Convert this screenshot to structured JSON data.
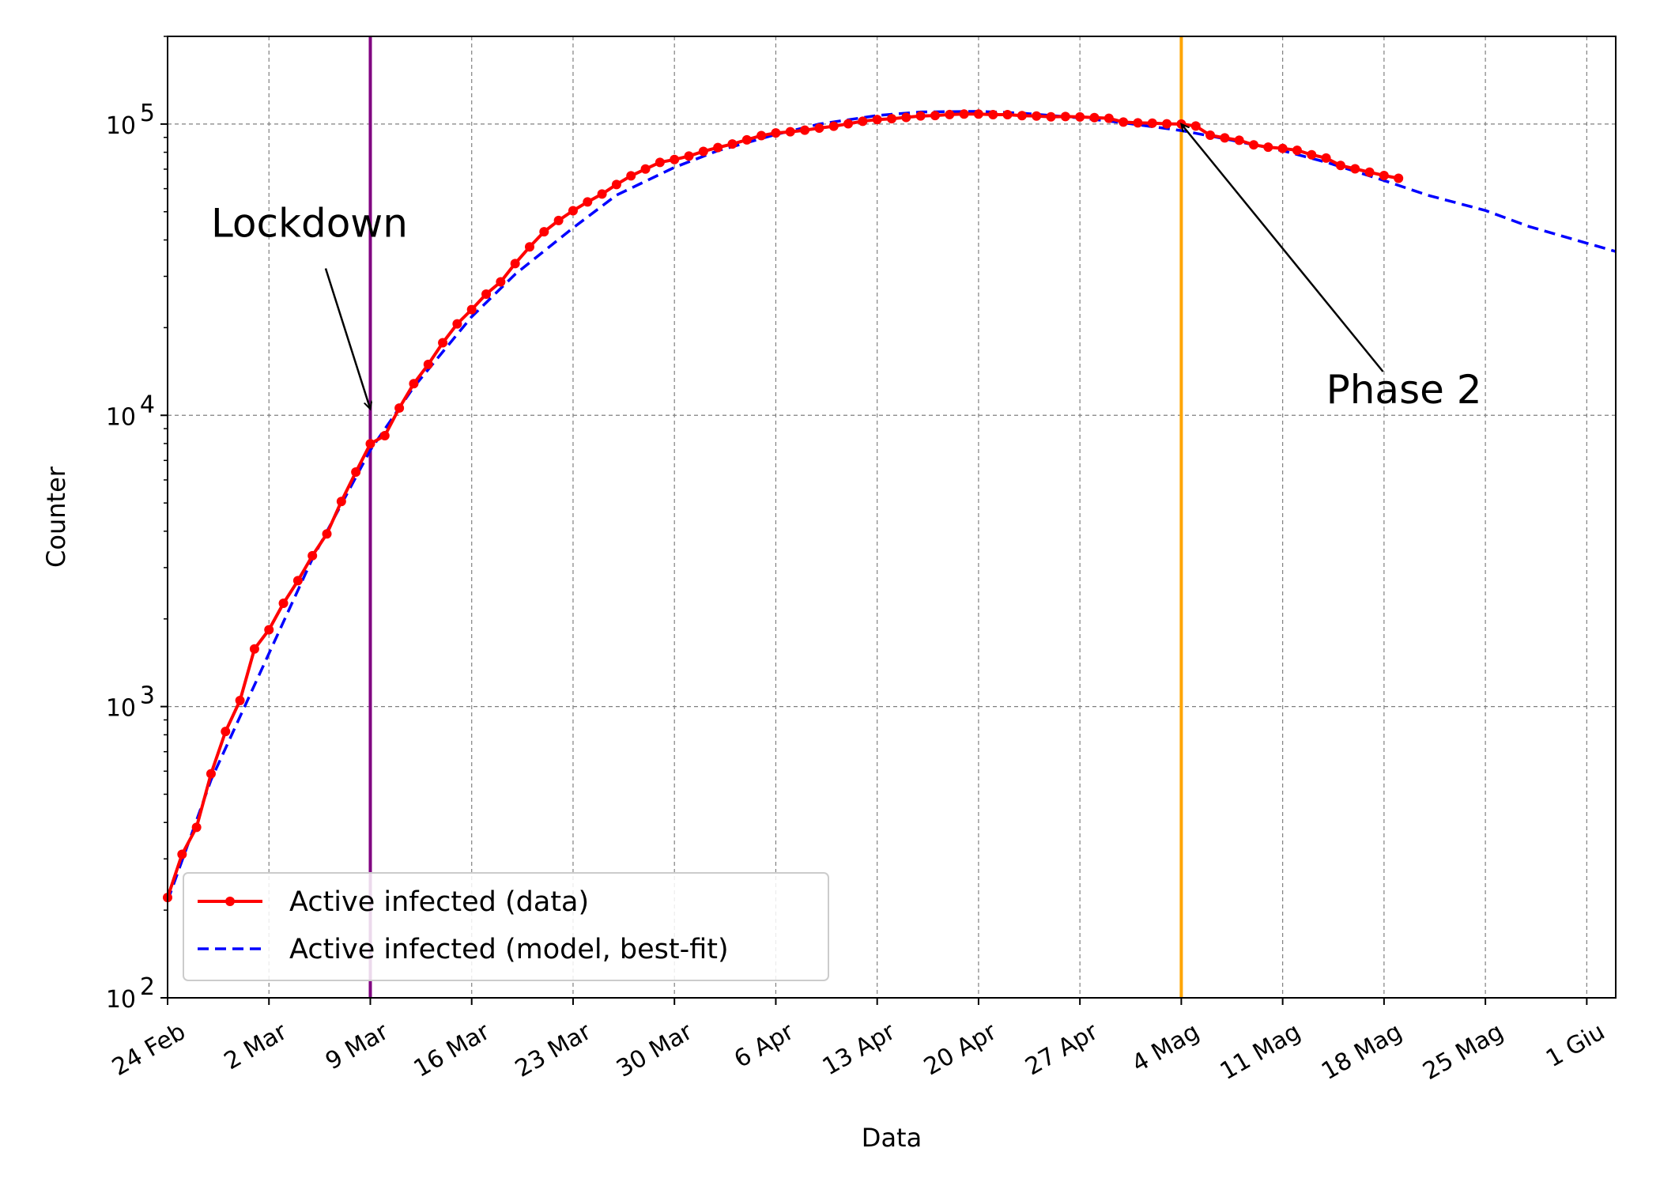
{
  "chart_data": {
    "type": "line",
    "xlabel": "Data",
    "ylabel": "Counter",
    "yscale": "log",
    "ylim": [
      100,
      200000
    ],
    "xlim": [
      "2020-02-24",
      "2020-06-03"
    ],
    "grid": true,
    "legend_position": "lower-left",
    "x_tick_labels": [
      {
        "date": "2020-02-24",
        "label": "24 Feb"
      },
      {
        "date": "2020-03-02",
        "label": "2 Mar"
      },
      {
        "date": "2020-03-09",
        "label": "9 Mar"
      },
      {
        "date": "2020-03-16",
        "label": "16 Mar"
      },
      {
        "date": "2020-03-23",
        "label": "23 Mar"
      },
      {
        "date": "2020-03-30",
        "label": "30 Mar"
      },
      {
        "date": "2020-04-06",
        "label": "6 Apr"
      },
      {
        "date": "2020-04-13",
        "label": "13 Apr"
      },
      {
        "date": "2020-04-20",
        "label": "20 Apr"
      },
      {
        "date": "2020-04-27",
        "label": "27 Apr"
      },
      {
        "date": "2020-05-04",
        "label": "4 Mag"
      },
      {
        "date": "2020-05-11",
        "label": "11 Mag"
      },
      {
        "date": "2020-05-18",
        "label": "18 Mag"
      },
      {
        "date": "2020-05-25",
        "label": "25 Mag"
      },
      {
        "date": "2020-06-01",
        "label": "1 Giu"
      }
    ],
    "y_tick_labels": [
      {
        "value": 100,
        "base": "10",
        "exp": "2"
      },
      {
        "value": 1000,
        "base": "10",
        "exp": "3"
      },
      {
        "value": 10000,
        "base": "10",
        "exp": "4"
      },
      {
        "value": 100000,
        "base": "10",
        "exp": "5"
      }
    ],
    "vertical_lines": [
      {
        "date": "2020-03-09",
        "color": "#800080"
      },
      {
        "date": "2020-05-04",
        "color": "#ffa500"
      }
    ],
    "annotations": [
      {
        "text": "Lockdown",
        "text_date": "2020-02-27",
        "text_value": 41000,
        "arrow_to_date": "2020-03-09",
        "arrow_to_value": 10500
      },
      {
        "text": "Phase 2",
        "text_date": "2020-05-14",
        "text_value": 11000,
        "arrow_to_date": "2020-05-04",
        "arrow_to_value": 100000
      }
    ],
    "series": [
      {
        "name": "Active infected (data)",
        "color": "#ff0000",
        "style": "solid-marker",
        "x": [
          "2020-02-24",
          "2020-02-25",
          "2020-02-26",
          "2020-02-27",
          "2020-02-28",
          "2020-02-29",
          "2020-03-01",
          "2020-03-02",
          "2020-03-03",
          "2020-03-04",
          "2020-03-05",
          "2020-03-06",
          "2020-03-07",
          "2020-03-08",
          "2020-03-09",
          "2020-03-10",
          "2020-03-11",
          "2020-03-12",
          "2020-03-13",
          "2020-03-14",
          "2020-03-15",
          "2020-03-16",
          "2020-03-17",
          "2020-03-18",
          "2020-03-19",
          "2020-03-20",
          "2020-03-21",
          "2020-03-22",
          "2020-03-23",
          "2020-03-24",
          "2020-03-25",
          "2020-03-26",
          "2020-03-27",
          "2020-03-28",
          "2020-03-29",
          "2020-03-30",
          "2020-03-31",
          "2020-04-01",
          "2020-04-02",
          "2020-04-03",
          "2020-04-04",
          "2020-04-05",
          "2020-04-06",
          "2020-04-07",
          "2020-04-08",
          "2020-04-09",
          "2020-04-10",
          "2020-04-11",
          "2020-04-12",
          "2020-04-13",
          "2020-04-14",
          "2020-04-15",
          "2020-04-16",
          "2020-04-17",
          "2020-04-18",
          "2020-04-19",
          "2020-04-20",
          "2020-04-21",
          "2020-04-22",
          "2020-04-23",
          "2020-04-24",
          "2020-04-25",
          "2020-04-26",
          "2020-04-27",
          "2020-04-28",
          "2020-04-29",
          "2020-04-30",
          "2020-05-01",
          "2020-05-02",
          "2020-05-03",
          "2020-05-04",
          "2020-05-05",
          "2020-05-06",
          "2020-05-07",
          "2020-05-08",
          "2020-05-09",
          "2020-05-10",
          "2020-05-11",
          "2020-05-12",
          "2020-05-13",
          "2020-05-14",
          "2020-05-15",
          "2020-05-16",
          "2020-05-17",
          "2020-05-18",
          "2020-05-19"
        ],
        "y": [
          221,
          311,
          385,
          588,
          821,
          1049,
          1577,
          1835,
          2263,
          2706,
          3296,
          3916,
          5061,
          6387,
          7985,
          8514,
          10590,
          12839,
          14955,
          17750,
          20603,
          23073,
          26062,
          28710,
          33190,
          37860,
          42681,
          46638,
          50418,
          54030,
          57521,
          62013,
          66414,
          70065,
          73880,
          75528,
          77635,
          80572,
          83049,
          85388,
          88274,
          91246,
          93187,
          94067,
          95262,
          96877,
          98273,
          100269,
          102253,
          103616,
          104291,
          105418,
          106607,
          106962,
          107771,
          108257,
          108237,
          107709,
          107699,
          106848,
          106527,
          105847,
          106103,
          105813,
          105205,
          104657,
          101551,
          100943,
          100704,
          100179,
          99980,
          98467,
          91528,
          89624,
          87961,
          84842,
          83324,
          82488,
          81266,
          78457,
          76440,
          72070,
          70187,
          68351,
          66553,
          65129
        ]
      },
      {
        "name": "Active infected (model, best-fit)",
        "color": "#0000ff",
        "style": "dashed",
        "x": [
          "2020-02-24",
          "2020-02-27",
          "2020-03-02",
          "2020-03-05",
          "2020-03-09",
          "2020-03-12",
          "2020-03-16",
          "2020-03-19",
          "2020-03-23",
          "2020-03-26",
          "2020-03-30",
          "2020-04-02",
          "2020-04-06",
          "2020-04-09",
          "2020-04-13",
          "2020-04-16",
          "2020-04-20",
          "2020-04-23",
          "2020-04-27",
          "2020-04-30",
          "2020-05-04",
          "2020-05-07",
          "2020-05-11",
          "2020-05-14",
          "2020-05-18",
          "2020-05-21",
          "2020-05-25",
          "2020-05-28",
          "2020-06-03"
        ],
        "y": [
          215,
          560,
          1520,
          3220,
          7600,
          12500,
          21800,
          30500,
          44000,
          57000,
          71000,
          81000,
          92000,
          100000,
          107000,
          110000,
          110500,
          109000,
          105000,
          101000,
          95000,
          89000,
          81000,
          74000,
          64000,
          57000,
          50500,
          44500,
          36500
        ]
      }
    ]
  }
}
